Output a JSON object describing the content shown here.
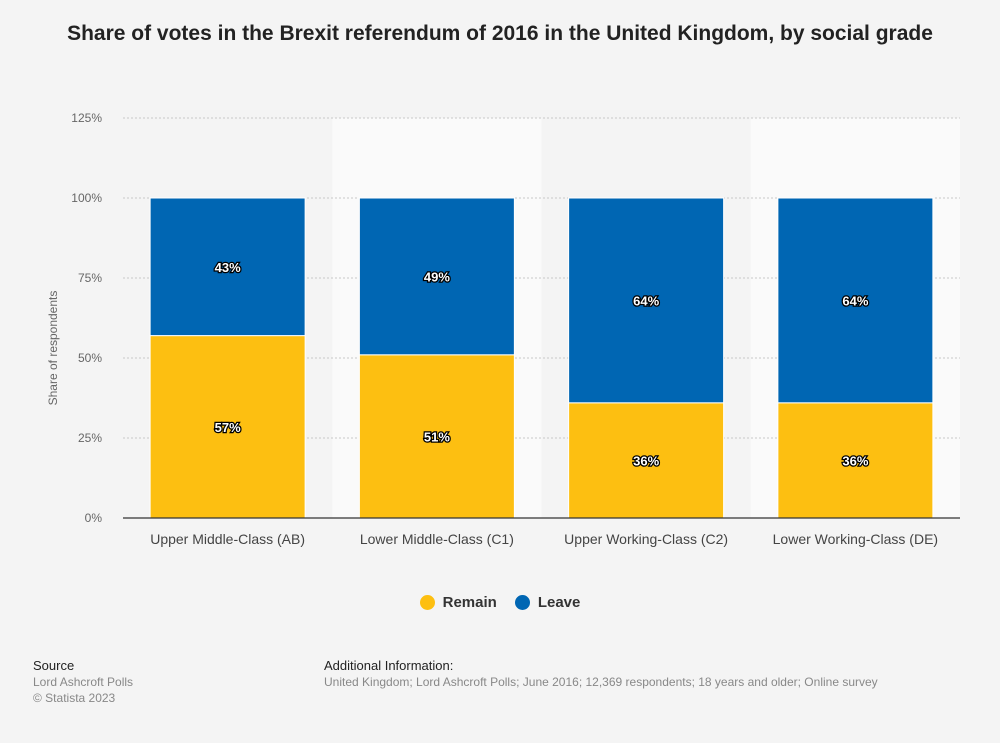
{
  "chart_data": {
    "type": "bar",
    "stacked": true,
    "title": "Share of votes in the Brexit referendum of 2016 in the United Kingdom, by social grade",
    "ylabel": "Share of respondents",
    "xlabel": "",
    "ylim": [
      0,
      125
    ],
    "yticks": [
      "0%",
      "25%",
      "50%",
      "75%",
      "100%",
      "125%"
    ],
    "categories": [
      "Upper Middle-Class (AB)",
      "Lower Middle-Class (C1)",
      "Upper Working-Class (C2)",
      "Lower Working-Class (DE)"
    ],
    "series": [
      {
        "name": "Remain",
        "color": "#fdbf11",
        "values": [
          57,
          51,
          36,
          36
        ],
        "labels": [
          "57%",
          "51%",
          "36%",
          "36%"
        ]
      },
      {
        "name": "Leave",
        "color": "#0066b3",
        "values": [
          43,
          49,
          64,
          64
        ],
        "labels": [
          "43%",
          "49%",
          "64%",
          "64%"
        ]
      }
    ],
    "grid": true,
    "legend": "bottom"
  },
  "footer": {
    "source_heading": "Source",
    "source_lines": [
      "Lord Ashcroft Polls",
      "© Statista 2023"
    ],
    "info_heading": "Additional Information:",
    "info_text": "United Kingdom; Lord Ashcroft Polls; June 2016; 12,369 respondents; 18 years and older; Online survey"
  }
}
